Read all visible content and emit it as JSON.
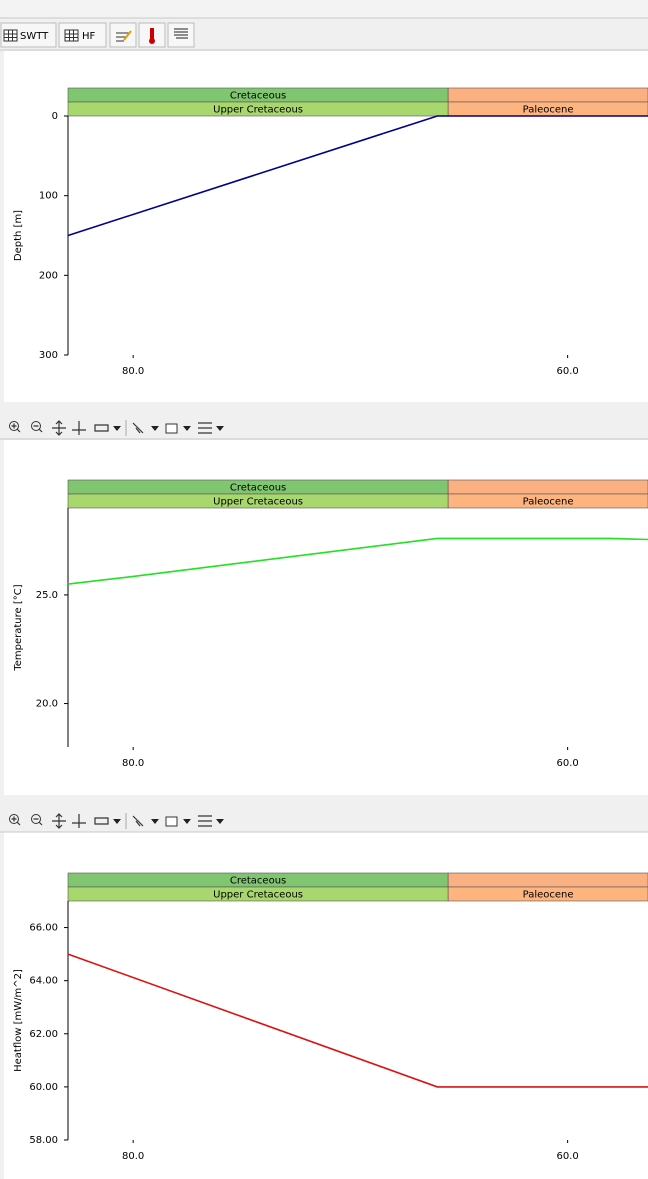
{
  "toolbar": {
    "buttons": [
      "SWTT",
      "HF"
    ]
  },
  "chart_data": [
    {
      "type": "line",
      "ylabel": "Depth [m]",
      "bands_top": [
        {
          "name": "Cretaceous",
          "from": 83,
          "to": 65.5,
          "color": "#80c670"
        },
        {
          "from": 65.5,
          "to": 56.3,
          "color": "#fbb082"
        }
      ],
      "bands_bottom": [
        {
          "name": "Upper Cretaceous",
          "from": 83,
          "to": 65.5,
          "color": "#a8d76d"
        },
        {
          "name": "Paleocene",
          "from": 65.5,
          "to": 56.3,
          "color": "#fdb47e"
        }
      ],
      "x": [
        83,
        66,
        56.3
      ],
      "values": [
        150,
        0,
        0
      ],
      "color": "#00008b",
      "xlim": [
        83,
        56.3
      ],
      "xticks": [
        {
          "value": 80,
          "label": "80.0"
        },
        {
          "value": 60,
          "label": "60.0"
        }
      ],
      "ylim": [
        300,
        0
      ],
      "yticks": [
        0,
        100,
        200,
        300
      ]
    },
    {
      "type": "line",
      "ylabel": "Temperature [°C]",
      "bands_top": [
        {
          "name": "Cretaceous",
          "from": 83,
          "to": 65.5,
          "color": "#80c670"
        },
        {
          "from": 65.5,
          "to": 56.3,
          "color": "#fbb082"
        }
      ],
      "bands_bottom": [
        {
          "name": "Upper Cretaceous",
          "from": 83,
          "to": 65.5,
          "color": "#a8d76d"
        },
        {
          "name": "Paleocene",
          "from": 65.5,
          "to": 56.3,
          "color": "#fdb47e"
        }
      ],
      "x": [
        83,
        80,
        66,
        58,
        56.3
      ],
      "values": [
        25.5,
        25.85,
        27.6,
        27.6,
        27.55
      ],
      "color": "#22e022",
      "xlim": [
        83,
        56.3
      ],
      "xticks": [
        {
          "value": 80,
          "label": "80.0"
        },
        {
          "value": 60,
          "label": "60.0"
        }
      ],
      "ylim": [
        18,
        29
      ],
      "yticks": [
        {
          "value": 20,
          "label": "20.0"
        },
        {
          "value": 25,
          "label": "25.0"
        }
      ]
    },
    {
      "type": "line",
      "ylabel": "Heatflow [mW/m^2]",
      "bands_top": [
        {
          "name": "Cretaceous",
          "from": 83,
          "to": 65.5,
          "color": "#80c670"
        },
        {
          "from": 65.5,
          "to": 56.3,
          "color": "#fbb082"
        }
      ],
      "bands_bottom": [
        {
          "name": "Upper Cretaceous",
          "from": 83,
          "to": 65.5,
          "color": "#a8d76d"
        },
        {
          "name": "Paleocene",
          "from": 65.5,
          "to": 56.3,
          "color": "#fdb47e"
        }
      ],
      "x": [
        83,
        66,
        56.3
      ],
      "values": [
        65,
        60,
        60
      ],
      "color": "#dd1111",
      "xlim": [
        83,
        56.3
      ],
      "xticks": [
        {
          "value": 80,
          "label": "80.0"
        },
        {
          "value": 60,
          "label": "60.0"
        }
      ],
      "ylim": [
        58,
        67
      ],
      "yticks": [
        {
          "value": 58,
          "label": "58.00"
        },
        {
          "value": 60,
          "label": "60.00"
        },
        {
          "value": 62,
          "label": "62.00"
        },
        {
          "value": 64,
          "label": "64.00"
        },
        {
          "value": 66,
          "label": "66.00"
        }
      ]
    }
  ]
}
